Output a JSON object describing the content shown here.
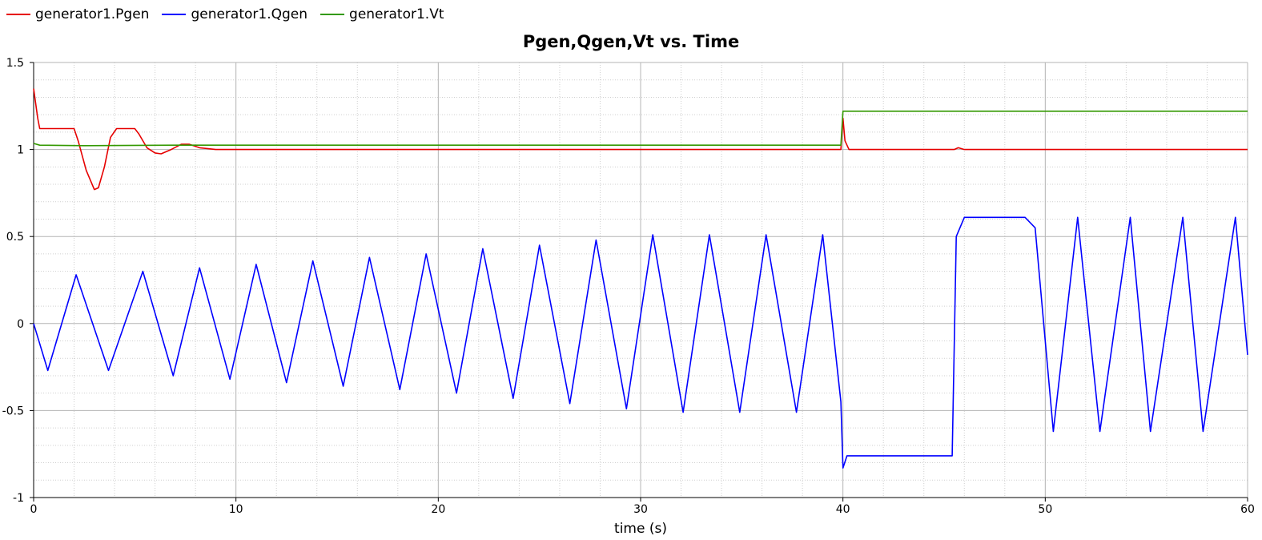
{
  "chart_data": {
    "type": "line",
    "title": "Pgen,Qgen,Vt vs. Time",
    "xlabel": "time (s)",
    "ylabel": "",
    "xlim": [
      0,
      60
    ],
    "ylim": [
      -1,
      1.5
    ],
    "x_ticks": [
      "0",
      "10",
      "20",
      "30",
      "40",
      "50",
      "60"
    ],
    "y_ticks": [
      "-1",
      "-0.5",
      "0",
      "0.5",
      "1",
      "1.5"
    ],
    "grid": true,
    "legend_position": "top-left",
    "series": [
      {
        "name": "generator1.Pgen",
        "color": "#e60000",
        "x": [
          0,
          0.2,
          0.3,
          2.0,
          2.2,
          2.6,
          3.0,
          3.2,
          3.5,
          3.8,
          4.1,
          5.0,
          5.2,
          5.6,
          6.0,
          6.3,
          6.8,
          7.3,
          7.7,
          8.2,
          9,
          12,
          20,
          30,
          39.9,
          40.0,
          40.1,
          40.3,
          44,
          45.5,
          45.7,
          46,
          60
        ],
        "y": [
          1.35,
          1.18,
          1.12,
          1.12,
          1.05,
          0.88,
          0.77,
          0.78,
          0.9,
          1.07,
          1.12,
          1.12,
          1.09,
          1.01,
          0.98,
          0.975,
          1.0,
          1.03,
          1.03,
          1.01,
          1.0,
          1.0,
          1.0,
          1.0,
          1.0,
          1.18,
          1.05,
          1.0,
          1.0,
          1.0,
          1.01,
          1.0,
          1.0
        ]
      },
      {
        "name": "generator1.Qgen",
        "color": "#0000ff",
        "x": [
          0,
          0.7,
          2.1,
          3.7,
          5.4,
          6.9,
          8.2,
          9.7,
          11.0,
          12.5,
          13.8,
          15.3,
          16.6,
          18.1,
          19.4,
          20.9,
          22.2,
          23.7,
          25.0,
          26.5,
          27.8,
          29.3,
          30.6,
          32.1,
          33.4,
          34.9,
          36.2,
          37.7,
          39.0,
          39.9,
          40.0,
          40.2,
          45.4,
          45.6,
          46.0,
          49.0,
          49.5,
          50.4,
          51.6,
          52.7,
          54.2,
          55.2,
          56.8,
          57.8,
          59.4,
          60.0
        ],
        "y": [
          0,
          -0.27,
          0.28,
          -0.27,
          0.3,
          -0.3,
          0.32,
          -0.32,
          0.34,
          -0.34,
          0.36,
          -0.36,
          0.38,
          -0.38,
          0.4,
          -0.4,
          0.43,
          -0.43,
          0.45,
          -0.46,
          0.48,
          -0.49,
          0.51,
          -0.51,
          0.51,
          -0.51,
          0.51,
          -0.51,
          0.51,
          -0.45,
          -0.83,
          -0.76,
          -0.76,
          0.5,
          0.61,
          0.61,
          0.55,
          -0.62,
          0.61,
          -0.62,
          0.61,
          -0.62,
          0.61,
          -0.62,
          0.61,
          -0.18
        ]
      },
      {
        "name": "generator1.Vt",
        "color": "#339900",
        "x": [
          0,
          0.3,
          2.5,
          7.0,
          39.9,
          40.0,
          60
        ],
        "y": [
          1.035,
          1.025,
          1.022,
          1.025,
          1.025,
          1.22,
          1.22
        ]
      }
    ]
  }
}
